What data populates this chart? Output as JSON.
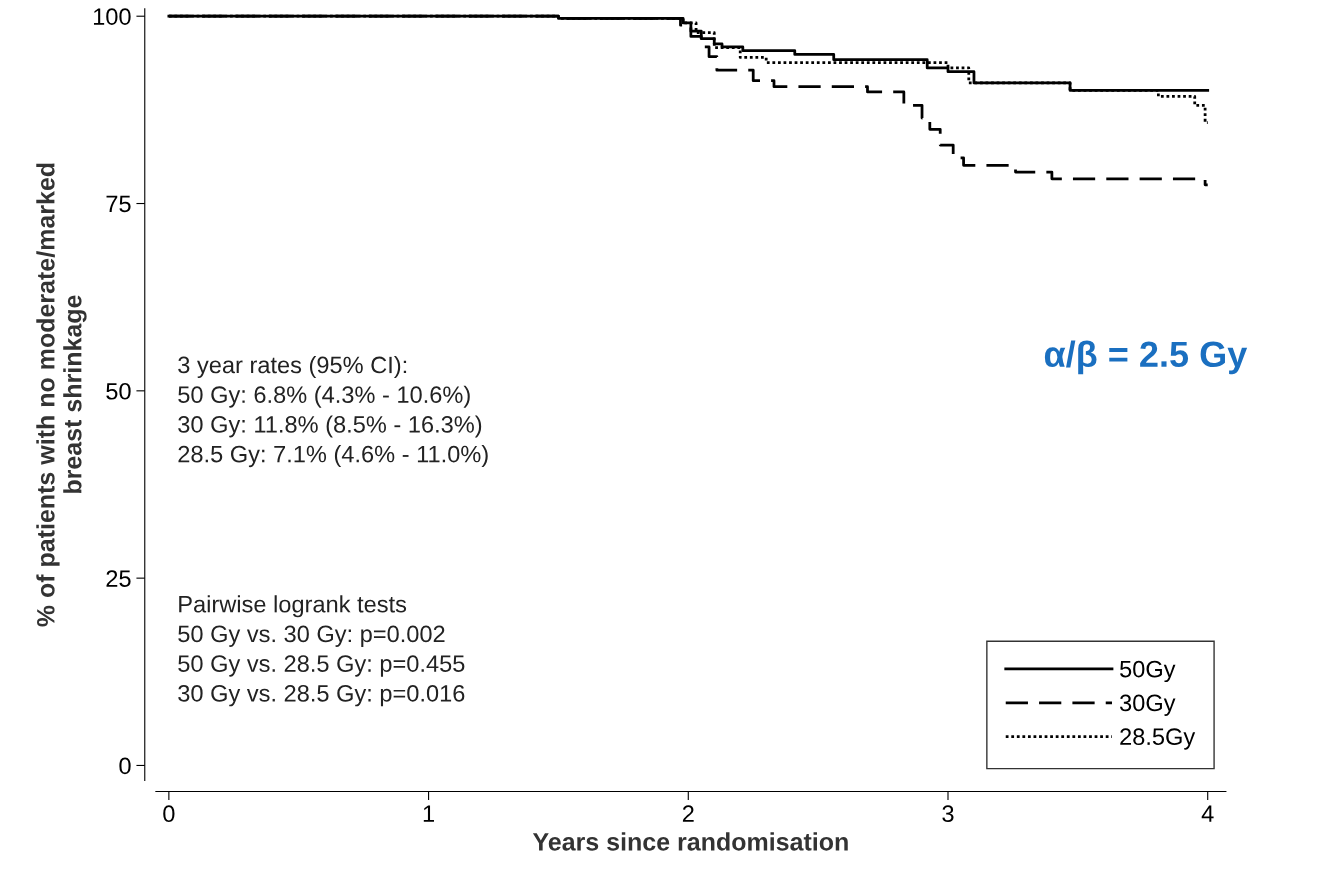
{
  "chart_data": {
    "type": "step",
    "xlabel": "Years since randomisation",
    "ylabel": "% of patients with no moderate/marked\nbreast shrinkage",
    "xlim": [
      -0.05,
      4.07
    ],
    "ylim": [
      -2,
      101
    ],
    "xticks": [
      0,
      1,
      2,
      3,
      4
    ],
    "yticks": [
      0,
      25,
      50,
      75,
      100
    ],
    "grid": false,
    "legend": "bottom right",
    "series": [
      {
        "name": "50Gy",
        "color": "#000000",
        "line_style": "solid",
        "x": [
          0,
          1.5,
          1.98,
          2.01,
          2.05,
          2.1,
          2.13,
          2.21,
          2.41,
          2.56,
          2.92,
          3.0,
          3.1,
          3.47,
          4.0
        ],
        "values": [
          100,
          99.7,
          99.1,
          98.0,
          97.0,
          96.3,
          95.9,
          95.4,
          94.9,
          94.2,
          93.1,
          92.6,
          91.1,
          90.1,
          90.1
        ]
      },
      {
        "name": "30Gy",
        "color": "#000000",
        "line_style": "dashed",
        "x": [
          0,
          1.5,
          1.97,
          2.01,
          2.05,
          2.08,
          2.11,
          2.25,
          2.33,
          2.69,
          2.83,
          2.9,
          2.93,
          2.97,
          3.02,
          3.06,
          3.1,
          3.26,
          3.4,
          3.99,
          4.0
        ],
        "values": [
          100,
          99.7,
          98.8,
          97.3,
          95.9,
          94.6,
          92.8,
          91.4,
          90.6,
          89.9,
          88.1,
          86.4,
          84.9,
          82.8,
          81.1,
          80.1,
          80.1,
          79.2,
          78.3,
          77.5,
          77.5
        ]
      },
      {
        "name": "28.5Gy",
        "color": "#000000",
        "line_style": "dotted",
        "x": [
          0,
          1.5,
          1.98,
          2.03,
          2.1,
          2.2,
          2.3,
          2.92,
          3.0,
          3.08,
          3.47,
          3.81,
          3.95,
          3.99,
          4.0
        ],
        "values": [
          100,
          99.7,
          99.1,
          97.8,
          95.8,
          94.5,
          93.8,
          93.8,
          93.1,
          91.1,
          90.1,
          89.3,
          88.1,
          85.8,
          85.8
        ]
      }
    ],
    "annotations": [
      "3 year rates (95% CI):\n50 Gy: 6.8% (4.3% - 10.6%)\n30 Gy: 11.8% (8.5% - 16.3%)\n28.5 Gy: 7.1% (4.6% - 11.0%)",
      "Pairwise logrank tests\n50 Gy vs. 30 Gy: p=0.002\n50 Gy vs. 28.5 Gy: p=0.455\n30 Gy vs. 28.5 Gy: p=0.016",
      "α/β = 2.5 Gy"
    ]
  }
}
